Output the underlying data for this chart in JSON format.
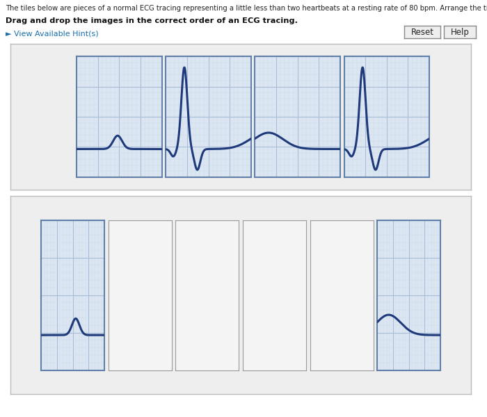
{
  "title_text": "The tiles below are pieces of a normal ECG tracing representing a little less than two heartbeats at a resting rate of 80 bpm. Arrange the tiles in their correct order.",
  "subtitle_text": "Drag and drop the images in the correct order of an ECG tracing.",
  "hint_text": "► View Available Hint(s)",
  "bg_color": "#ffffff",
  "tile_bg": "#dce6f2",
  "tile_border": "#6080aa",
  "grid_major": "#aabdd8",
  "grid_minor": "#ccd8ea",
  "ecg_color": "#1e3a7a",
  "reset_btn": "Reset",
  "help_btn": "Help",
  "empty_tile_bg": "#f4f4f4",
  "empty_tile_border": "#999999",
  "frame_bg": "#eeeeee",
  "frame_border": "#bbbbbb",
  "title_color": "#222222",
  "hint_color": "#1a6faf"
}
